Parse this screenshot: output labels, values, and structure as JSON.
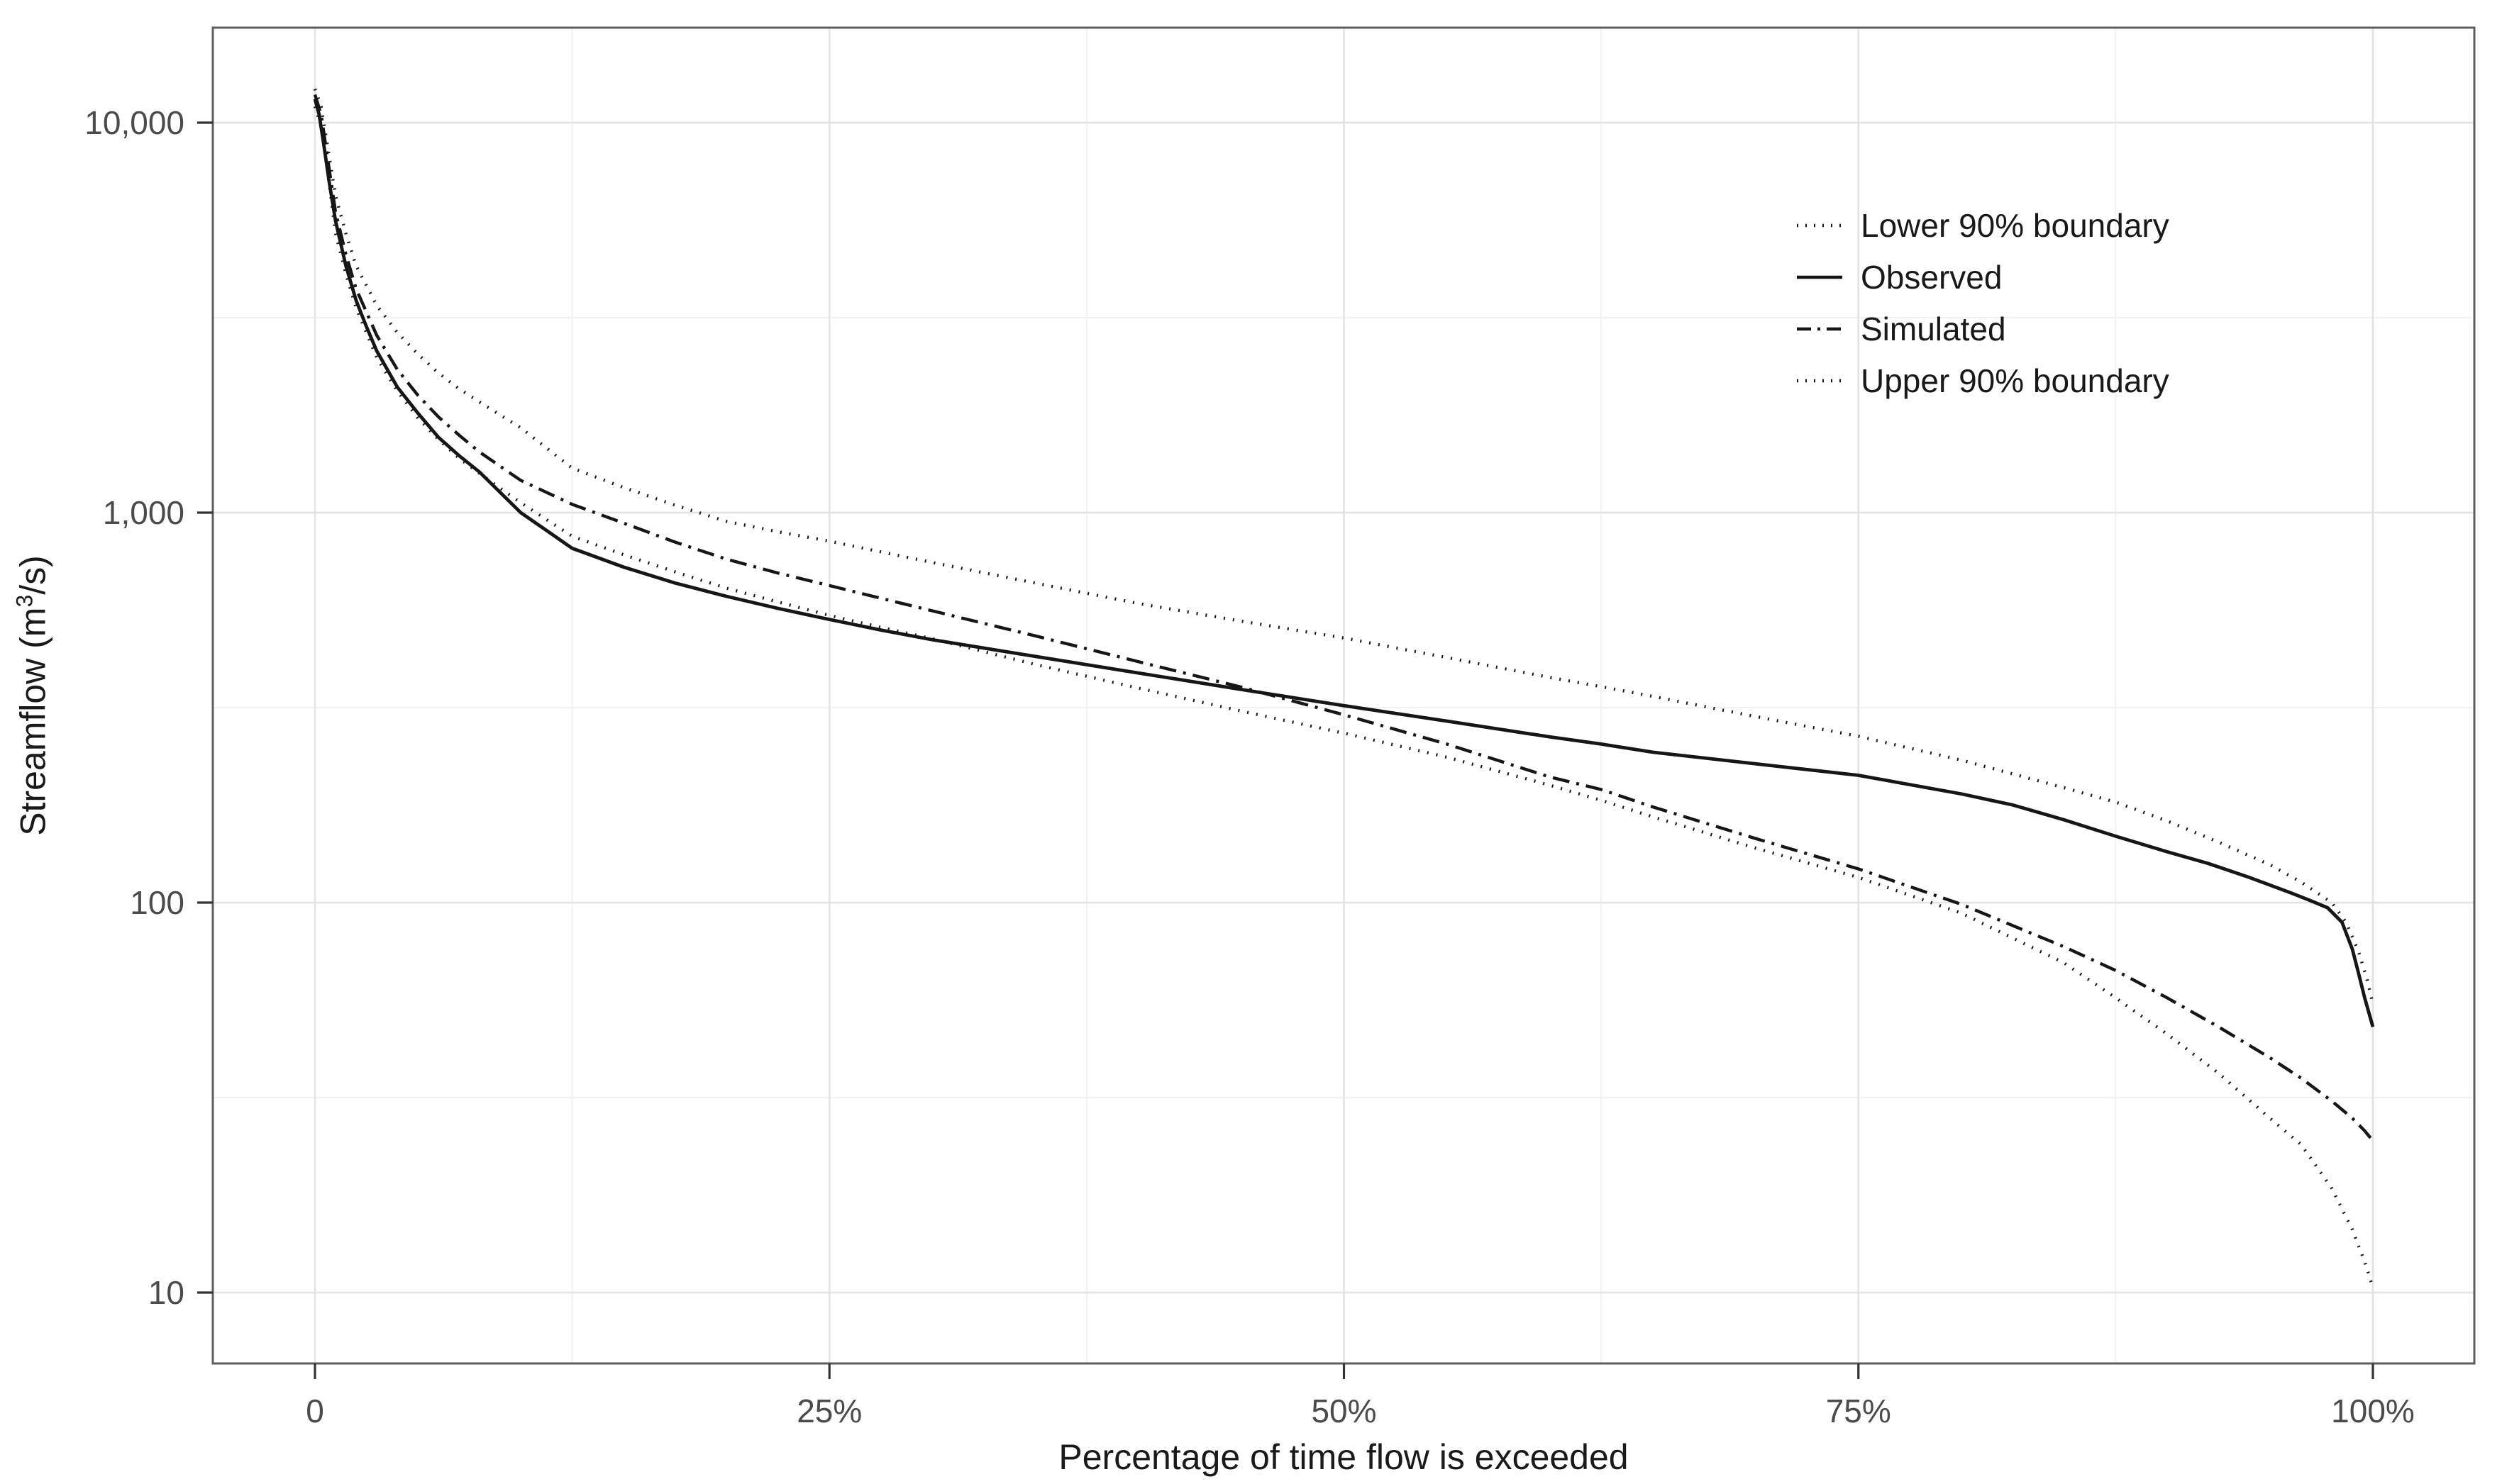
{
  "chart_data": {
    "type": "line",
    "title": "",
    "xlabel": "Percentage of time flow is exceeded",
    "ylabel": "Streamflow (m³/s)",
    "ylabel_parts": {
      "pre": "Streamflow (m",
      "sup": "3",
      "post": "/s)"
    },
    "x_axis": {
      "ticks": [
        0,
        25,
        50,
        75,
        100
      ],
      "tick_labels": [
        "0",
        "25%",
        "50%",
        "75%",
        "100%"
      ],
      "minor_ticks": [
        12.5,
        37.5,
        62.5,
        87.5
      ],
      "range": [
        0,
        100
      ],
      "unit": "percent"
    },
    "y_axis": {
      "scale": "log10",
      "ticks": [
        10,
        100,
        1000,
        10000
      ],
      "tick_labels": [
        "10",
        "100",
        "1,000",
        "10,000"
      ],
      "minor_ticks": [
        31.6,
        316,
        3162
      ],
      "range": [
        10,
        12200
      ],
      "unit": "m3/s"
    },
    "grid": "on",
    "legend": {
      "position": "top-right-inside",
      "entries": [
        {
          "label": "Lower 90% boundary",
          "style": "dotted"
        },
        {
          "label": "Observed",
          "style": "solid"
        },
        {
          "label": "Simulated",
          "style": "dash-dot"
        },
        {
          "label": "Upper 90% boundary",
          "style": "dotted"
        }
      ]
    },
    "series": [
      {
        "name": "Lower 90% boundary",
        "style": "dotted",
        "points": [
          [
            0,
            11000
          ],
          [
            0.3,
            9800
          ],
          [
            0.6,
            7600
          ],
          [
            1,
            5200
          ],
          [
            1.5,
            4100
          ],
          [
            2,
            3350
          ],
          [
            3,
            2500
          ],
          [
            4,
            2050
          ],
          [
            5,
            1750
          ],
          [
            6,
            1540
          ],
          [
            7,
            1380
          ],
          [
            8,
            1260
          ],
          [
            10,
            1060
          ],
          [
            12.5,
            870
          ],
          [
            15,
            780
          ],
          [
            17.5,
            705
          ],
          [
            20,
            640
          ],
          [
            22.5,
            590
          ],
          [
            25,
            545
          ],
          [
            27.5,
            508
          ],
          [
            30,
            475
          ],
          [
            35,
            408
          ],
          [
            40,
            355
          ],
          [
            45,
            310
          ],
          [
            50,
            272
          ],
          [
            55,
            236
          ],
          [
            60,
            200
          ],
          [
            62.5,
            183
          ],
          [
            65,
            166
          ],
          [
            70,
            138
          ],
          [
            75,
            116
          ],
          [
            80,
            94
          ],
          [
            85,
            70
          ],
          [
            87.5,
            57
          ],
          [
            90,
            46
          ],
          [
            92.5,
            36.5
          ],
          [
            95,
            28
          ],
          [
            96.5,
            24
          ],
          [
            98,
            18.5
          ],
          [
            99,
            14.5
          ],
          [
            99.6,
            12
          ],
          [
            100,
            10.3
          ]
        ]
      },
      {
        "name": "Observed",
        "style": "solid",
        "points": [
          [
            0,
            11500
          ],
          [
            0.2,
            10500
          ],
          [
            0.4,
            9000
          ],
          [
            0.7,
            7000
          ],
          [
            1,
            5600
          ],
          [
            1.5,
            4300
          ],
          [
            2,
            3500
          ],
          [
            2.5,
            3000
          ],
          [
            3,
            2600
          ],
          [
            4,
            2100
          ],
          [
            5,
            1800
          ],
          [
            6,
            1560
          ],
          [
            7,
            1400
          ],
          [
            8,
            1270
          ],
          [
            10,
            1000
          ],
          [
            12.5,
            810
          ],
          [
            15,
            725
          ],
          [
            17.5,
            660
          ],
          [
            20,
            610
          ],
          [
            22.5,
            568
          ],
          [
            25,
            532
          ],
          [
            27.5,
            500
          ],
          [
            30,
            472
          ],
          [
            35,
            428
          ],
          [
            40,
            388
          ],
          [
            45,
            352
          ],
          [
            50,
            320
          ],
          [
            55,
            292
          ],
          [
            60,
            266
          ],
          [
            62.5,
            255
          ],
          [
            65,
            243
          ],
          [
            70,
            227
          ],
          [
            75,
            212
          ],
          [
            80,
            190
          ],
          [
            82.5,
            178
          ],
          [
            85,
            163
          ],
          [
            87.5,
            148
          ],
          [
            90,
            135
          ],
          [
            92,
            126
          ],
          [
            94,
            116
          ],
          [
            96,
            106
          ],
          [
            97,
            101
          ],
          [
            97.8,
            97
          ],
          [
            98.5,
            89
          ],
          [
            99,
            76
          ],
          [
            99.3,
            66
          ],
          [
            99.6,
            57
          ],
          [
            100,
            48
          ]
        ]
      },
      {
        "name": "Simulated",
        "style": "dash-dot",
        "points": [
          [
            0,
            11800
          ],
          [
            0.3,
            10500
          ],
          [
            0.6,
            8200
          ],
          [
            1,
            5900
          ],
          [
            1.5,
            4600
          ],
          [
            2,
            3750
          ],
          [
            3,
            2850
          ],
          [
            4,
            2330
          ],
          [
            5,
            2000
          ],
          [
            6,
            1760
          ],
          [
            7,
            1580
          ],
          [
            8,
            1430
          ],
          [
            10,
            1210
          ],
          [
            12.5,
            1050
          ],
          [
            15,
            940
          ],
          [
            17.5,
            840
          ],
          [
            20,
            760
          ],
          [
            22.5,
            700
          ],
          [
            25,
            650
          ],
          [
            27.5,
            603
          ],
          [
            30,
            560
          ],
          [
            35,
            483
          ],
          [
            40,
            415
          ],
          [
            45,
            357
          ],
          [
            50,
            303
          ],
          [
            55,
            255
          ],
          [
            60,
            210
          ],
          [
            62.5,
            195
          ],
          [
            65,
            176
          ],
          [
            70,
            146
          ],
          [
            75,
            122
          ],
          [
            80,
            99
          ],
          [
            85,
            77
          ],
          [
            87.5,
            67
          ],
          [
            90,
            57
          ],
          [
            92.5,
            48
          ],
          [
            95,
            40
          ],
          [
            96.5,
            35.5
          ],
          [
            98,
            31
          ],
          [
            99,
            28
          ],
          [
            99.6,
            26
          ],
          [
            100,
            24.5
          ]
        ]
      },
      {
        "name": "Upper 90% boundary",
        "style": "dotted",
        "points": [
          [
            0,
            12200
          ],
          [
            0.3,
            11000
          ],
          [
            0.6,
            8800
          ],
          [
            1,
            6500
          ],
          [
            1.5,
            5200
          ],
          [
            2,
            4300
          ],
          [
            3,
            3400
          ],
          [
            4,
            2900
          ],
          [
            5,
            2550
          ],
          [
            6,
            2280
          ],
          [
            7,
            2080
          ],
          [
            8,
            1920
          ],
          [
            10,
            1650
          ],
          [
            12.5,
            1300
          ],
          [
            15,
            1160
          ],
          [
            17.5,
            1045
          ],
          [
            20,
            950
          ],
          [
            22.5,
            893
          ],
          [
            25,
            845
          ],
          [
            27.5,
            793
          ],
          [
            30,
            745
          ],
          [
            35,
            660
          ],
          [
            40,
            585
          ],
          [
            45,
            527
          ],
          [
            50,
            477
          ],
          [
            55,
            425
          ],
          [
            60,
            378
          ],
          [
            62.5,
            358
          ],
          [
            65,
            338
          ],
          [
            70,
            300
          ],
          [
            75,
            267
          ],
          [
            80,
            232
          ],
          [
            85,
            197
          ],
          [
            87.5,
            181
          ],
          [
            90,
            162
          ],
          [
            92.5,
            143
          ],
          [
            95,
            125
          ],
          [
            96.5,
            113
          ],
          [
            98,
            100
          ],
          [
            98.7,
            89
          ],
          [
            99.3,
            75
          ],
          [
            99.7,
            64
          ],
          [
            100,
            55
          ]
        ]
      }
    ],
    "colors": {
      "line": "#161616",
      "grid_major": "#e3e3e3",
      "grid_minor": "#f1f1f1",
      "panel_border": "#5e5e5e",
      "tick_mark": "#333333",
      "tick_label": "#4b4b4b",
      "axis_title": "#1a1a1a",
      "background": "#ffffff"
    }
  }
}
